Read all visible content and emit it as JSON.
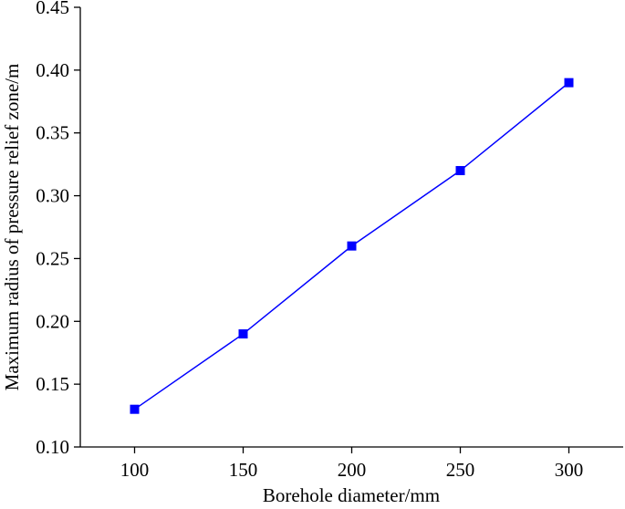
{
  "chart_data": {
    "type": "line",
    "x_label": "Borehole diameter/mm",
    "y_label": "Maximum radius of pressure relief zone/m",
    "x": [
      100,
      150,
      200,
      250,
      300
    ],
    "series": [
      {
        "name": "Maximum radius",
        "color": "#0000ff",
        "values": [
          0.13,
          0.19,
          0.26,
          0.32,
          0.39
        ]
      }
    ],
    "xlim": [
      75,
      325
    ],
    "xticks": [
      100,
      150,
      200,
      250,
      300
    ],
    "ylim": [
      0.1,
      0.45
    ],
    "yticks": [
      {
        "value": 0.1,
        "label": "0.10"
      },
      0.15,
      {
        "value": 0.2,
        "label": "0.20"
      },
      0.25,
      {
        "value": 0.3,
        "label": "0.30"
      },
      0.35,
      {
        "value": 0.4,
        "label": "0.40"
      },
      0.45
    ],
    "markers": "square",
    "grid": false
  }
}
